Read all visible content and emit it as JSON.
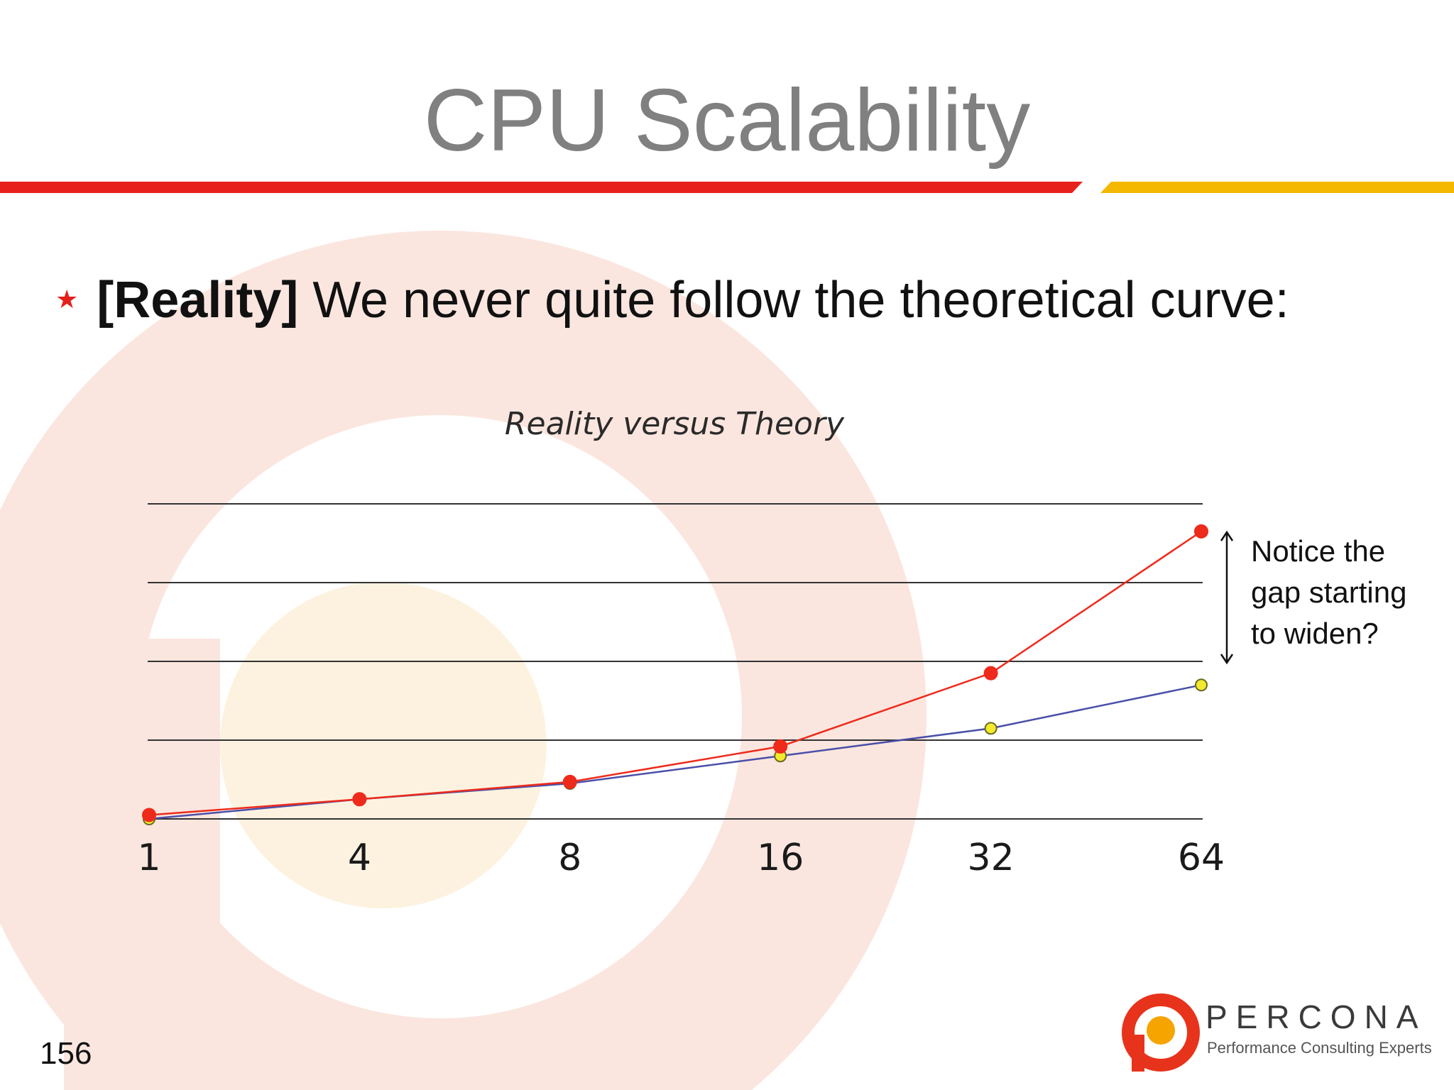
{
  "slide": {
    "title": "CPU Scalability",
    "bullet": {
      "bold": "[Reality]",
      "text": " We never quite follow the theoretical curve:"
    },
    "annotation": {
      "lines": [
        "Notice the",
        "gap starting",
        "to widen?"
      ]
    },
    "page_number": "156"
  },
  "logo": {
    "name": "PERCONA",
    "tagline": "Performance Consulting Experts"
  },
  "colors": {
    "title_gray": "#808080",
    "rule_red": "#e8201c",
    "rule_yellow": "#f5b800",
    "reality_series": "#ee2a1b",
    "theory_series": "#4a4fa8",
    "theory_marker": "#f3ea2e",
    "gridline": "#333333"
  },
  "chart_data": {
    "type": "line",
    "title": "Reality versus Theory",
    "categories": [
      "1",
      "4",
      "8",
      "16",
      "32",
      "64"
    ],
    "series": [
      {
        "key": "theory",
        "values": [
          0.0,
          0.25,
          0.45,
          0.8,
          1.15,
          1.7
        ]
      },
      {
        "key": "reality",
        "values": [
          0.05,
          0.25,
          0.47,
          0.92,
          1.85,
          3.65
        ]
      }
    ],
    "ylim": [
      0,
      4
    ],
    "grid": true,
    "gridlines_y": [
      0,
      1,
      2,
      3,
      4
    ],
    "legend": "none"
  }
}
